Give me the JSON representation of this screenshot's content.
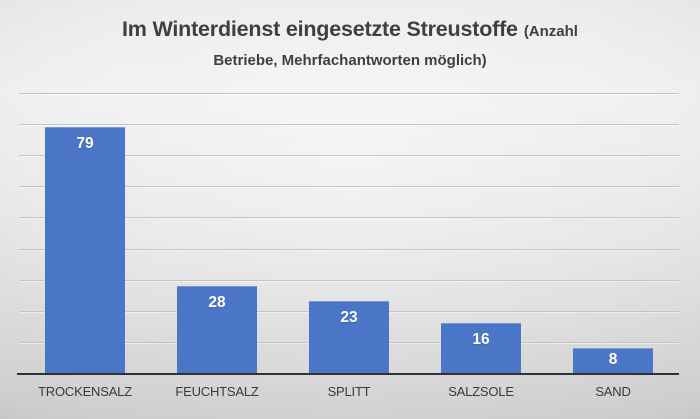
{
  "title": {
    "text_large": "Im Winterdienst eingesetzte Streustoffe",
    "text_small_line1": "(Anzahl",
    "text_small_line2": "Betriebe, Mehrfachantworten möglich)",
    "color": "#3f3f3f"
  },
  "chart_data": {
    "type": "bar",
    "title": "Im Winterdienst eingesetzte Streustoffe (Anzahl Betriebe, Mehrfachantworten möglich)",
    "categories": [
      "TROCKENSALZ",
      "FEUCHTSALZ",
      "SPLITT",
      "SALZSOLE",
      "SAND"
    ],
    "values": [
      79,
      28,
      23,
      16,
      8
    ],
    "xlabel": "",
    "ylabel": "",
    "ylim": [
      0,
      90
    ],
    "gridline_step": 10,
    "grid": true,
    "legend": false,
    "data_label_position": "inside-end",
    "bar_color": "#4b76c8",
    "data_label_color": "#ffffff",
    "gridline_color": "#c4c4c4",
    "axis_line_color": "#313131",
    "category_label_color": "#3a3a3a",
    "background_top": "#f1f1f1",
    "background_bottom": "#d7d7d7"
  }
}
